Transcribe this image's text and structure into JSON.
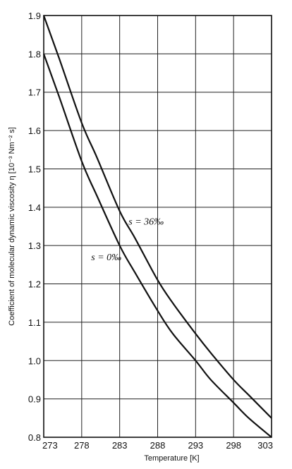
{
  "chart_data": {
    "type": "line",
    "xlabel": "Temperature [K]",
    "ylabel": "Coefficient of molecular dynamic viscosity η [10⁻³ Nm⁻² s]",
    "xlim": [
      273,
      303
    ],
    "ylim": [
      0.8,
      1.9
    ],
    "x_ticks": [
      "273",
      "278",
      "283",
      "288",
      "293",
      "298",
      "303"
    ],
    "y_ticks": [
      "0.8",
      "0.9",
      "1.0",
      "1.1",
      "1.2",
      "1.3",
      "1.4",
      "1.5",
      "1.6",
      "1.7",
      "1.8",
      "1.9"
    ],
    "grid": true,
    "legend": "none",
    "series": [
      {
        "label": "s = 36‰",
        "x": [
          273,
          275,
          278,
          280,
          283,
          285,
          288,
          290,
          293,
          295,
          298,
          300,
          303
        ],
        "y": [
          1.9,
          1.79,
          1.62,
          1.53,
          1.39,
          1.32,
          1.21,
          1.15,
          1.07,
          1.02,
          0.95,
          0.91,
          0.85
        ]
      },
      {
        "label": "s = 0‰",
        "x": [
          273,
          275,
          278,
          280,
          283,
          285,
          288,
          290,
          293,
          295,
          298,
          300,
          303
        ],
        "y": [
          1.8,
          1.69,
          1.52,
          1.43,
          1.3,
          1.23,
          1.13,
          1.07,
          1.0,
          0.95,
          0.89,
          0.85,
          0.8
        ]
      }
    ],
    "annotations": [
      {
        "text": "s = 36‰",
        "series": 0
      },
      {
        "text": "s = 0‰",
        "series": 1
      }
    ]
  }
}
